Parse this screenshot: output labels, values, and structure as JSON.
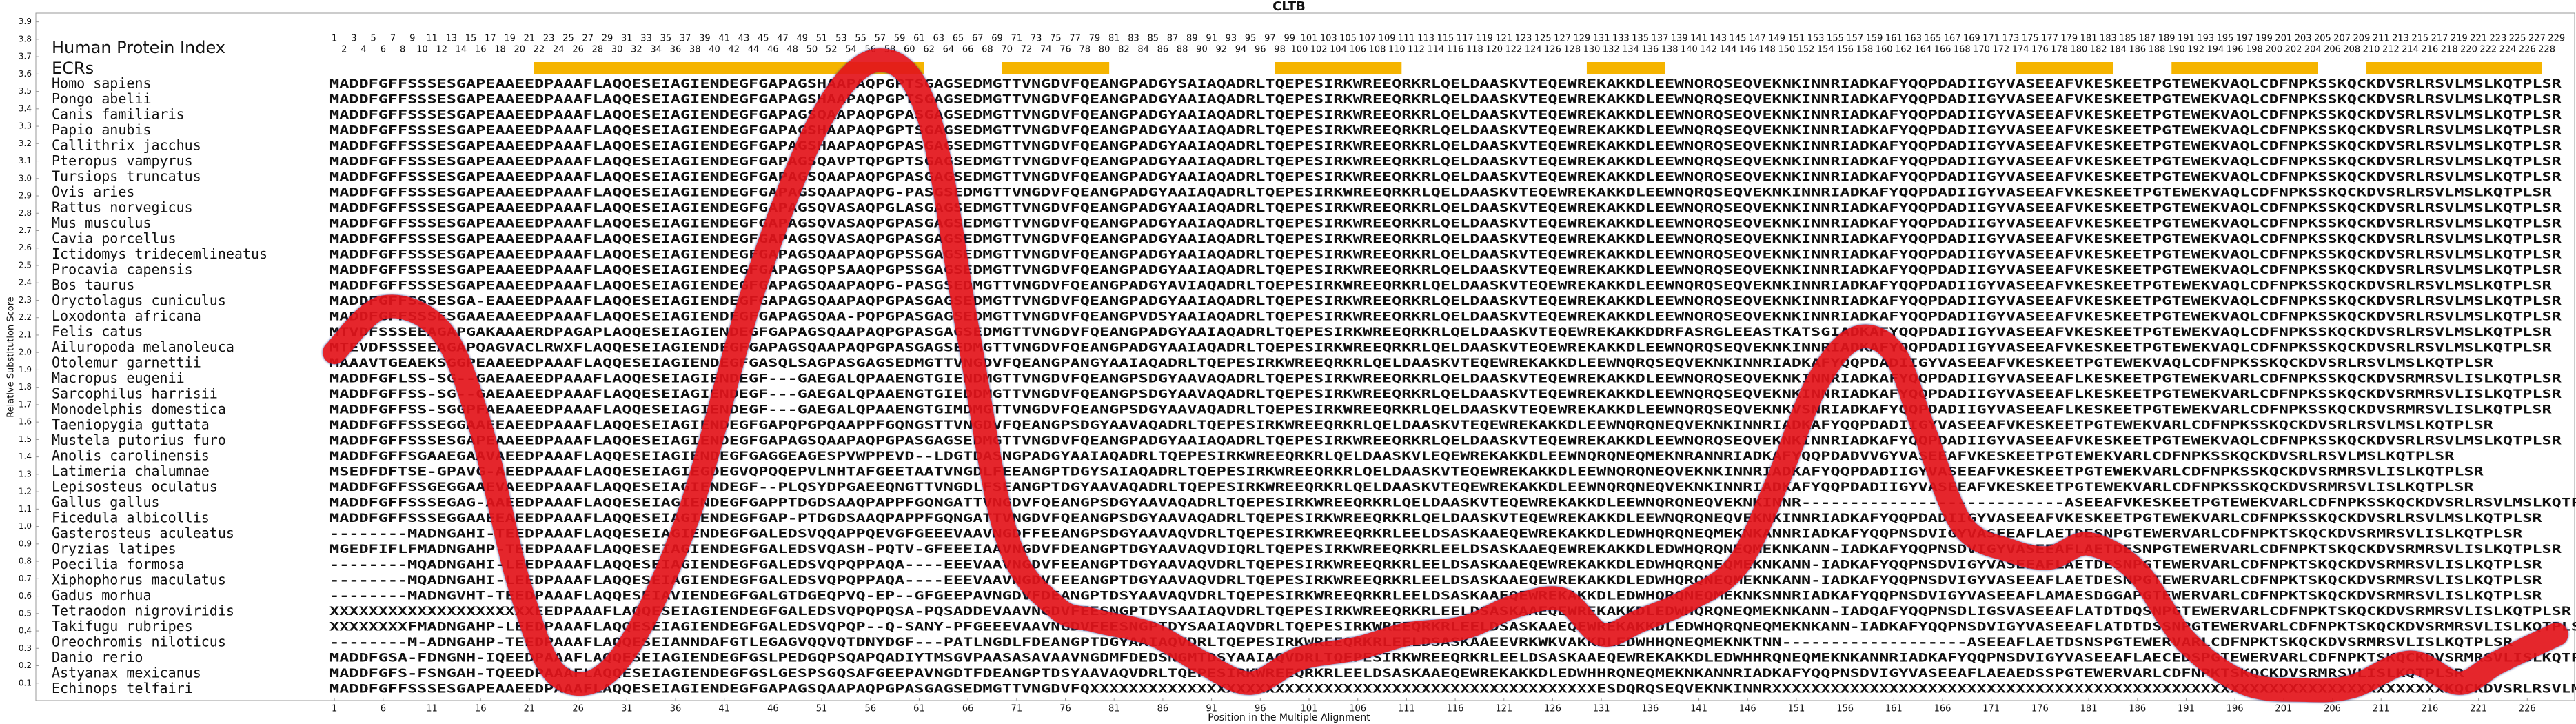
{
  "chart_data": {
    "type": "line",
    "title": "CLTB",
    "xlabel": "Position in the Multiple Alignment",
    "ylabel": "Relative Substitution Score",
    "xlim": [
      0,
      231
    ],
    "ylim": [
      0,
      3.95
    ],
    "xticks": [
      1,
      6,
      11,
      16,
      21,
      26,
      31,
      36,
      41,
      46,
      51,
      56,
      61,
      66,
      71,
      76,
      81,
      86,
      91,
      96,
      101,
      106,
      111,
      116,
      121,
      126,
      131,
      136,
      141,
      146,
      151,
      156,
      161,
      166,
      171,
      176,
      181,
      186,
      191,
      196,
      201,
      206,
      211,
      216,
      221,
      226
    ],
    "yticks": [
      0.1,
      0.2,
      0.3,
      0.4,
      0.5,
      0.6,
      0.7,
      0.8,
      0.9,
      {
        "value": 1,
        "label": "1.0"
      },
      1.1,
      1.2,
      1.3,
      1.4,
      1.5,
      1.6,
      1.7,
      1.8,
      1.9,
      {
        "value": 2,
        "label": "2.0"
      },
      2.1,
      2.2,
      2.3,
      2.4,
      2.5,
      2.6,
      2.7,
      2.8,
      2.9,
      {
        "value": 3,
        "label": "3.0"
      },
      3.1,
      3.2,
      3.3,
      3.4,
      3.5,
      3.6,
      3.7,
      3.8,
      3.9
    ],
    "x": [
      1,
      6,
      12,
      16,
      20,
      24,
      30,
      37,
      44,
      51,
      57,
      62,
      66,
      70,
      75,
      79,
      85,
      90,
      95,
      100,
      106,
      111,
      117,
      122,
      127,
      131,
      135,
      140,
      145,
      149,
      153,
      157,
      161,
      164,
      168,
      173,
      177,
      181,
      186,
      191,
      197,
      203,
      208,
      214,
      219,
      223,
      229
    ],
    "series": [
      {
        "color": "#e3141b",
        "values": [
          2.0,
          2.26,
          2.12,
          1.57,
          0.66,
          0.14,
          0.22,
          1.01,
          2.36,
          3.35,
          3.68,
          3.35,
          2.12,
          0.94,
          0.54,
          0.46,
          0.38,
          0.22,
          0.1,
          0.24,
          0.3,
          0.38,
          0.42,
          0.54,
          0.58,
          0.38,
          0.46,
          0.58,
          0.78,
          1.25,
          1.81,
          2.08,
          2.0,
          1.57,
          1.01,
          0.86,
          0.82,
          0.9,
          0.74,
          0.34,
          0.1,
          0.06,
          0.08,
          0.22,
          0.1,
          0.22,
          0.38
        ]
      }
    ]
  },
  "alignment": {
    "header_label": "Human Protein Index",
    "ecr_label": "ECRs",
    "ecr_color": "#f5b400",
    "sequence_color": "#1f4fa0",
    "positions": [
      1,
      2,
      3,
      4,
      5,
      6,
      7,
      8,
      9,
      10,
      11,
      12,
      13,
      14,
      15,
      16,
      17,
      18,
      19,
      20,
      21,
      22,
      23,
      24,
      25,
      26,
      27,
      28,
      29,
      30,
      31,
      32,
      33,
      34,
      35,
      36,
      37,
      38,
      39,
      40,
      41,
      42,
      43,
      44,
      45,
      46,
      47,
      48,
      49,
      50,
      51,
      52,
      53,
      54,
      55,
      56,
      57,
      58,
      59,
      60,
      61,
      62,
      63,
      64,
      65,
      66,
      67,
      68,
      69,
      70,
      71,
      72,
      73,
      74,
      75,
      76,
      77,
      78,
      79,
      80,
      81,
      82,
      83,
      84,
      85,
      86,
      87,
      88,
      89,
      90,
      91,
      92,
      93,
      94,
      95,
      96,
      97,
      98,
      99,
      100,
      101,
      102,
      103,
      104,
      105,
      106,
      107,
      108,
      109,
      110,
      111,
      112,
      113,
      114,
      115,
      116,
      117,
      118,
      119,
      120,
      121,
      122,
      123,
      124,
      125,
      126,
      127,
      128,
      129,
      130,
      131,
      132,
      133,
      134,
      135,
      136,
      137,
      138,
      139,
      140,
      141,
      142,
      143,
      144,
      145,
      146,
      147,
      148,
      149,
      150,
      151,
      152,
      153,
      154,
      155,
      156,
      157,
      158,
      159,
      160,
      161,
      162,
      163,
      164,
      165,
      166,
      167,
      168,
      169,
      170,
      171,
      172,
      173,
      174,
      175,
      176,
      177,
      178,
      179,
      180,
      181,
      182,
      183,
      184,
      185,
      186,
      187,
      188,
      189,
      190,
      191,
      192,
      193,
      194,
      195,
      196,
      197,
      198,
      199,
      200,
      201,
      202,
      203,
      204,
      205,
      206,
      207,
      208,
      209,
      210,
      211,
      212,
      213,
      214,
      215,
      216,
      217,
      218,
      219,
      220,
      221,
      222,
      223,
      224,
      225,
      226,
      227,
      228,
      229
    ],
    "ecrs": [
      {
        "start": 22,
        "end": 61
      },
      {
        "start": 70,
        "end": 80
      },
      {
        "start": 98,
        "end": 110
      },
      {
        "start": 130,
        "end": 137
      },
      {
        "start": 174,
        "end": 183
      },
      {
        "start": 190,
        "end": 204
      },
      {
        "start": 210,
        "end": 227
      }
    ],
    "rows": [
      {
        "species": "Homo sapiens",
        "sequence": "MADDFGFFSSSESGAPEAAEEDPAAAFLAQQESEIAGIENDEGFGAPAGSHAAPAQPGPTSGAGSEDMGTTVNGDVFQEANGPADGYSAIAQADRLTQEPESIRKWREEQRKRLQELDAASKVTEQEWREKAKKDLEEWNQRQSEQVEKNKINNRIADKAFYQQPDADIIGYVASEEAFVKESKEETPGTEWEKVAQLCDFNPKSSKQCKDVSRLRSVLMSLKQTPLSR"
      },
      {
        "species": "Pongo abelii",
        "sequence": "MADDFGFFSSSESGAPEAAEEDPAAAFLAQQESEIAGIENDEGFGAPAGSHAAPAQPGPTSGAGSEDMGTTVNGDVFQEANGPADGYAAIAQADRLTQEPESIRKWREEQRKRLQELDAASKVTEQEWREKAKKDLEEWNQRQSEQVEKNKINNRIADKAFYQQPDADIIGYVASEEAFVKESKEETPGTEWEKVAQLCDFNPKSSKQCKDVSRLRSVLMSLKQTPLSR"
      },
      {
        "species": "Canis familiaris",
        "sequence": "MADDFGFFSSSESGAPEAAEEDPAAAFLAQQESEIAGIENDEGFGAPAGSQAAPAQPGPASGAGSEDMGTTVNGDVFQEANGPADGYAAIAQADRLTQEPESIRKWREEQRKRLQELDAASKVTEQEWREKAKKDLEEWNQRQSEQVEKNKINNRIADKAFYQQPDADIIGYVASEEAFVKESKEETPGTEWEKVAQLCDFNPKSSKQCKDVSRLRSVLMSLKQTPLSR"
      },
      {
        "species": "Papio anubis",
        "sequence": "MADDFGFFSSSESGAPEAAEEDPAAAFLAQQESEIAGIENDEGFGAPAGSHAAPAQPGPTSGAGSEDMGTTVNGDVFQEANGPADGYAAIAQADRLTQEPESIRKWREEQRKRLQELDAASKVTEQEWREKAKKDLEEWNQRQSEQVEKNKINNRIADKAFYQQPDADIIGYVASEEAFVKESKEETPGTEWEKVAQLCDFNPKSSKQCKDVSRLRSVLMSLKQTPLSR"
      },
      {
        "species": "Callithrix jacchus",
        "sequence": "MADDFGFFSSSESGAPEAAEEDPAAAFLAQQESEIAGIENDEGFGAPAGSHAAPAQPGPASGAGSEDMGTTVNGDVFQEANGPADGYAAIAQADRLTQEPESIRKWREEQRKRLQELDAASKVTEQEWREKAKKDLEEWNQRQSEQVEKNKINNRIADKAFYQQPDADIIGYVASEEAFVKESKEETPGTEWEKVAQLCDFNPKSSKQCKDVSRLRSVLMSLKQTPLSR"
      },
      {
        "species": "Pteropus vampyrus",
        "sequence": "MADDFGFFSSSESGAPEAAEEDPAAAFLAQQESEIAGIENDEGFGAPAGSQAVPTQPGPTSGAGSEDMGTTVNGDVFQEANGPADGYAAIAQADRLTQEPESIRKWREEQRKRLQELDAASKVTEQEWREKAKKDLEEWNQRQSEQVEKNKINNRIADKAFYQQPDADIIGYVASEEAFVKESKEETPGTEWEKVAQLCDFNPKSSKQCKDVSRLRSVLMSLKQTPLSR"
      },
      {
        "species": "Tursiops truncatus",
        "sequence": "MADDFGFFSSSESGAPEAAEEDPAAAFLAQQESEIAGIENDEGFGAPAGSQAAPAQPGPASGAGSEDMGTTVNGDVFQEANGPADGYAAIAQADRLTQEPESIRKWREEQRKRLQELDAASKVTEQEWREKAKKDLEEWNQRQSEQVEKNKINNRIADKAFYQQPDADIIGYVASEEAFVKESKEETPGTEWEKVAQLCDFNPKSSKQCKDVSRLRSVLMSLKQTPLSR"
      },
      {
        "species": "Ovis aries",
        "sequence": "MADDFGFFSSSESGAPEAAEEDPAAAFLAQQESEIAGIENDEGFGAPAGSQAAPAQPG-PASGSEDMGTTVNGDVFQEANGPADGYAAIAQADRLTQEPESIRKWREEQRKRLQELDAASKVTEQEWREKAKKDLEEWNQRQSEQVEKNKINNRIADKAFYQQPDADIIGYVASEEAFVKESKEETPGTEWEKVAQLCDFNPKSSKQCKDVSRLRSVLMSLKQTPLSR"
      },
      {
        "species": "Rattus norvegicus",
        "sequence": "MADDFGFFSSSESGAPEAAEEDPAAAFLAQQESEIAGIENDEGFGAPAGSQVASAQPGLASGAGSEDMGTTVNGDVFQEANGPADGYAAIAQADRLTQEPESIRKWREEQRKRLQELDAASKVTEQEWREKAKKDLEEWNQRQSEQVEKNKINNRIADKAFYQQPDADIIGYVASEEAFVKESKEETPGTEWEKVAQLCDFNPKSSKQCKDVSRLRSVLMSLKQTPLSR"
      },
      {
        "species": "Mus musculus",
        "sequence": "MADDFGFFSSSESGAPEAAEEDPAAAFLAQQESEIAGIENDEGFGAPAGSQVASAQPGPASGAGSEDMGTTVNGDVFQEANGPADGYAAIAQADRLTQEPESIRKWREEQRKRLQELDAASKVTEQEWREKAKKDLEEWNQRQSEQVEKNKINNRIADKAFYQQPDADIIGYVASEEAFVKESKEETPGTEWEKVAQLCDFNPKSSKQCKDVSRLRSVLMSLKQTPLSR"
      },
      {
        "species": "Cavia porcellus",
        "sequence": "MADDFGFFSSSESGAPEAAEEDPAAAFLAQQESEIAGIENDEGFGAPAGSQVASAQPGPASGAGSEDMGTTVNGDVFQEANGPADGYAAIAQADRLTQEPESIRKWREEQRKRLQELDAASKVTEQEWREKAKKDLEEWNQRQSEQVEKNKINNRIADKAFYQQPDADIIGYVASEEAFVKESKEETPGTEWEKVAQLCDFNPKSSKQCKDVSRLRSVLMSLKQTPLSR"
      },
      {
        "species": "Ictidomys tridecemlineatus",
        "sequence": "MADDFGFFSSSESGAPEAAEEDPAAAFLAQQESEIAGIENDEGFGAPAGSQAAPAQPGPSSGAGSEDMGTTVNGDVFQEANGPADGYAAIAQADRLTQEPESIRKWREEQRKRLQELDAASKVTEQEWREKAKKDLEEWNQRQSEQVEKNKINNRIADKAFYQQPDADIIGYVASEEAFVKESKEETPGTEWEKVAQLCDFNPKSSKQCKDVSRLRSVLMSLKQTPLSR"
      },
      {
        "species": "Procavia capensis",
        "sequence": "MADDFGFFSSSESGAPEAAEEDPAAAFLAQQESEIAGIENDEGFGAPAGSQPSAAQPGPSSGAGSEDMGTTVNGDVFQEANGPADGYAAIAQADRLTQEPESIRKWREEQRKRLQELDAASKVTEQEWREKAKKDLEEWNQRQSEQVEKNKINNRIADKAFYQQPDADIIGYVASEEAFVKESKEETPGTEWEKVAQLCDFNPKSSKQCKDVSRLRSVLMSLKQTPLSR"
      },
      {
        "species": "Bos taurus",
        "sequence": "MADDFGFFSSSESGAPEAAEEDPAAAFLAQQESEIAGIENDEGFGAPAGSQAAPAQPG-PASGSEDMGTTVNGDVFQEANGPADGYAVIAQADRLTQEPESIRKWREEQRKRLQELDAASKVTEQEWREKAKKDLEEWNQRQSEQVEKNKINNRIADKAFYQQPDADIIGYVASEEAFVKESKEETPGTEWEKVAQLCDFNPKSSKQCKDVSRLRSVLMSLKQTPLSR"
      },
      {
        "species": "Oryctolagus cuniculus",
        "sequence": "MADDFGFFSSSESGA-EAAEEDPAAAFLAQQESEIAGIENDEGFGAPAGSQAAPAQPGPASGAGSEDMGTTVNGDVFQEANGPADGYAAIAQADRLTQEPESIRKWREEQRKRLQELDAASKVTEQEWREKAKKDLEEWNQRQSEQVEKNKINNRIADKAFYQQPDADIIGYVASEEAFVKESKEETPGTEWEKVAQLCDFNPKSSKQCKDVSRLRSVLMSLKQTPLSR"
      },
      {
        "species": "Loxodonta africana",
        "sequence": "MADDFGFFSSSESGAAEAAEEDPAAAFLAQQESEIAGIENDEGFGAPAGSQAA-PQPGPASGAGSEDMGTTVNGDVFQEANGPVDSYAAIAQADRLTQEPESIRKWREEQRKRLQELDAASKVTEQEWREKAKKDLEEWNQRQSEQVEKNKINNRIADKAFYQQPDADIIGYVASEEAFVKESKEETPGTEWEKVAQLCDFNPKSSKQCKDVSRLRSVLMSLKQTPLSR"
      },
      {
        "species": "Felis catus",
        "sequence": "MTVDFSSSEEAGAPGAKAAAERDPAGAPLAQQESEIAGIENDEGFGAPAGSQAAPAQPGPASGAGSEDMGTTVNGDVFQEANGPADGYAAIAQADRLTQEPESIRKWREEQRKRLQELDAASKVTEQEWREKAKKDDRFASRGLEEASTKATSGIADKAFYQQPDADIIGYVASEEAFVKESKEETPGTEWEKVAQLCDFNPKSSKQCKDVSRLRSVLMSLKQTPLSR"
      },
      {
        "species": "Ailuropoda melanoleuca",
        "sequence": "MTEVDFSSSEEAGAPQAGVACLRWXFLAQQESEIAGIENDEGFGAPAGSQAAPAQPGPASGAGSEDMGTTVNGDVFQEANGPADGYAAIAQADRLTQEPESIRKWREEQRKRLQELDAASKVTEQEWREKAKKDLEEWNQRQSEQVEKNKINNRIADKAFYQQPDADIIGYVASEEAFVKESKEETPGTEWEKVAQLCDFNPKSSKQCKDVSRLRSVLMSLKQTPLSR"
      },
      {
        "species": "Otolemur garnettii",
        "sequence": "MAAAVTGEAEKSGGPEAAEEDPAAAFLAQQESEIAGIENDEGFGASQLSAGPASGAGSEDMGTTVNGDVFQEANGPANGYAAIAQADRLTQEPESIRKWREEQRKRLQELDAASKVTEQEWREKAKKDLEEWNQRQSEQVEKNKINNRIADKAFYQQPDADIIGYVASEEAFVKESKEETPGTEWEKVAQLCDFNPKSSKQCKDVSRLRSVLMSLKQTPLSR"
      },
      {
        "species": "Macropus eugenii",
        "sequence": "MADDFGFLSS-SG--GAEAAEEDPAAAFLAQQESEIAGIENDEGF---GAEGALQPAAENGTGIENDMGTTVNGDVFQEANGPSDGYAAVAQADRLTQEPESIRKWREEQRKRLQELDAASKVTEQEWREKAKKDLEEWNQRQSEQVEKNKINNRIADKAFYQQPDADIIGYVASEEAFLKESKEETPGTEWEKVARLCDFNPKSSKQCKDVSRMRSVLISLKQTPLSR"
      },
      {
        "species": "Sarcophilus harrisii",
        "sequence": "MADDFGFFSS-SG--GAEAAEEDPAAAFLAQQESEIAGIENDEGF---GAEGALQPAAENGTGIEDDMGTTVNGDVFQEANGPSDGYAAVAQADRLTQEPESIRKWREEQRKRLQELDAASKVTEQEWREKAKKDLEEWNQRQSEQVEKNKINNRIADKAFYQQPDADIIGYVASEEAFLKESKEETPGTEWEKVARLCDFNPKSSKQCKDVSRMRSVLISLKQTPLSR"
      },
      {
        "species": "Monodelphis domestica",
        "sequence": "MADDFGFFSS-SGGPFAEAAEEDPAAAFLAQQESEIAGIENDEGF---GAEGALQPAAENGTGIMDMGTTVNGDVFQEANGPSDGYAAVAQADRLTQEPESIRKWREEQRKRLQELDAASKVTEQEWREKAKKDLEEWNQRQSEQVEKNKVSNRIADKAFYQQPDADIIGYVASEEAFLKESKEETPGTEWEKVARLCDFNPKSSKQCKDVSRMRSVLISLKQTPLSR"
      },
      {
        "species": "Taeniopygia guttata",
        "sequence": "MADDFGFFSSSEGGAAEEAEEDPAAAFLAQQESEIAGIENDEGFGAPQPGPQAAPPFGQNGSTTVNGDVFQEANGPSDGYAAVAQADRLTQEPESIRKWREEQRKRLQELDAASKVTEQEWREKAKKDLEEWNQRQNEQVEKNKINNRIADKAFYQQPDADIIGYVASEEAFVKESKEETPGTEWEKVARLCDFNPKSSKQCKDVSRLRSVLMSLKQTPLSR"
      },
      {
        "species": "Mustela putorius furo",
        "sequence": "MADDFGFFSSSESGAPEAAEEDPAAAFLAQQESEIAGIENDEGFGAPAGSQAAPAQPGPASGAGSEDMGTTVNGDVFQEANGPADGYAAIAQADRLTQEPESIRKWREEQRKRLQELDAASKVTEQEWREKAKKDLEEWNQRQSEQVEKNKINNRIADKAFYQQPDADIIGYVASEEAFVKESKEETPGTEWEKVAQLCDFNPKSSKQCKDVSRLRSVLMSLKQTPLSR"
      },
      {
        "species": "Anolis carolinensis",
        "sequence": "MADDFGFFSGAAEGAAVAEEDPAAAFLAQQESEIAGIENDEGFGAGGEAGESPVWPPEVD--LDGTDASNGPADGYAAIAQADRLTQEPESIRKWREEQRKRLQELDAASKVLEQEWREKAKKDLEEWNQRQNEQMEKNRANNRIADKAFYQQPDADVVGYVASEEAFVKESKEETPGTEWEKVARLCDFNPKSSKQCKDVSRLRSVLMSLKQTPLSR"
      },
      {
        "species": "Latimeria chalumnae",
        "sequence": "MSEDFDFTSE-GPAVG-AEEDPAAAFLAQQESEIAGIEGDEGVQPQQEPVLNHTAFGEETAATVNGDLFEEANGPTDGYSAIAQADRLTQEPESIRKWREEQRKRLQELDAASKVTEQEWREKAKKDLEEWNQRQNEQVEKNKINNRIADKAFYQQPDADIIGYVASEEAFVKESKEETPGTEWEKVARLCDFNPKSSKQCKDVSRMRSVLISLKQTPLSR"
      },
      {
        "species": "Lepisosteus oculatus",
        "sequence": "MADDFGFFSSGEGGAAEVAEEDPAAAFLAQQESEIAGIENDEGF--PLQSYDPGAEEQNGTTVNGDLFSEANGPTDGYAAVAQADRLTQEPESIRKWREEQRKRLQELDAASKVTEQEWREKAKKDLEEWNQRQNEQVEKNKINNRIADKAFYQQPDADIIGYVASEEAFVKESKEETPGTEWEKVARLCDFNPKSSKQCKDVSRMRSVLISLKQTPLSR"
      },
      {
        "species": "Gallus gallus",
        "sequence": "MADDFGFFSSSEGAG-AAEEDPAAAFLAQQESEIAGIENDEGFGAPPTDGDSAAQPAPPFGQNGATTVNGDVFQEANGPSDGYAAVAQADRLTQEPESIRKWREEQRKRLQELDAASKVTEQEWREKAKKDLEEWNQRQNEQVEKNKINNR---------------------------ASEEAFVKESKEETPGTEWEKVARLCDFNPKSSKQCKDVSRLRSVLMSLKQTPLSR"
      },
      {
        "species": "Ficedula albicollis",
        "sequence": "MADDFGFFSSSEGGAAEEAEEDPAAAFLAQQESEIAGIENDEGFGAP-PTDGDSAAQPAPPFGQNGATTVNGDVFQEANGPSDGYAAVAQADRLTQEPESIRKWREEQRKRLQELDAASKVTEQEWREKAKKDLEEWNQRQNEQVEKNKINNRIADKAFYQQPDADIIGYVASEEAFVKESKEETPGTEWEKVARLCDFNPKSSKQCKDVSRLRSVLMSLKQTPLSR"
      },
      {
        "species": "Gasterosteus aculeatus",
        "sequence": "--------MADNGAHI-TEEDPAAAFLAQQESEIAGIENDEGFGALEDSVQQAPPQEVGFGEEEVAAVNGDFFEEANGPSDGYAAVAQVDRLTQEPESIRKWREEQRKRLEELDSASKAAEQEWREKAKKDLEDWHQRQNEQMEKNKANNRIADKAFYQQPNSDVIGYVASEEAFLAETDESNPGTEWERVARLCDFNPKTSKQCKDVSRMRSVLISLKQTPLSR"
      },
      {
        "species": "Oryzias latipes",
        "sequence": "MGEDFIFLFMADNGAHP-TEEDPAAAFLAQQESEIAGIENDEGFGALEDSVQASH-PQTV-GFEEEIAAVNGDVFDEANGPTDGYAAVAQVDIQRLTQEPESIRKWREEQRKRLEELDSASKAAEQEWREKAKKDLEDWHQRQNEQMEKNKANN-IADKAFYQQPNSDVIGYVASEEAFLAETDESNPGTEWERVARLCDFNPKTSKQCKDVSRMRSVLISLKQTPLSR"
      },
      {
        "species": "Poecilia formosa",
        "sequence": "--------MQADNGAHI-LEEDPAAAFLAQQESEIAGIENDEGFGALEDSVQPQPPAQA----EEEVAAVNGDVFEEANGPTDGYAAVAQVDRLTQEPESIRKWREEQRKRLEELDSASKAAEQEWREKAKKDLEDWHQRQNEQMEKNKANN-IADKAFYQQPNSDVIGYVASEEAFLAETDESNPGTEWERVARLCDFNPKTSKQCKDVSRMRSVLISLKQTPLSR"
      },
      {
        "species": "Xiphophorus maculatus",
        "sequence": "--------MQADNGAHI-LEEDPAAAFLAQQESEIAGIENDEGFGALEDSVQPQPPAQA----EEEVAAVNGDVFEEANGPTDGYAAVAQVDRLTQEPESIRKWREEQRKRLEELDSASKAAEQEWREKAKKDLEDWHQRQNEQMEKNKANN-IADKAFYQQPNSDVIGYVASEEAFLAETDESNPGTEWERVARLCDFNPKTSKQCKDVSRMRSVLISLKQTPLSR"
      },
      {
        "species": "Gadus morhua",
        "sequence": "--------MADNGVHT-TEEDPAAAFLAQQESEIAVIENDEGFGALGTDGEQPVQ-EP--GFGEEPAVNGDVFDEANGPTDSYAAVAQVDRLTQEPESIRKWREEQRKRLEELDSASKAAEQEWREKAKKDLEDWHQRQNEQMEKNKSNNRIADKAFYQQPNSDVIGYVASEEAFLAMAESDGGAPGTEWERVARLCDFNPKTSKQCKDVSRMRSVLISLKQTPLSR"
      },
      {
        "species": "Tetraodon nigroviridis",
        "sequence": "XXXXXXXXXXXXXXXXXXXXXEEDPAAAFLAQQESEIAGIENDEGFGALEDSVQPQPQSA-PQSADDEVAAVNGDVFEESNGPTDYSAAIAQVDRLTQEPESIRKWREEQRKRLEELDSASKAAEQEWREKAKKDLEDWHQRQNEQMEKNKANN-IADQAFYQQPNSDLIGSVASEEAFLATDTDQSNPGTEWERVARLCDFNPKTSKQCKDVSRMRSVLISLKQTPLSR"
      },
      {
        "species": "Takifugu rubripes",
        "sequence": "XXXXXXXXFMADNGAHP-LEEDPAAAFLAQQESEIAGIENDEGFGALEDSVQPQP--Q-SANY-PFGEEEVAAVNGDVFEESNGPTDYSAAIAQVDRLTQEPESIRKWREEQRKRLEELDSASKAAEQEWREKAKKDLEDWHQRQNEQMEKNKANN-IADKAFYQQPNSDVIGYVASEEAFLATDTDSSNPGTEWERVARLCDFNPKTSKQCKDVSRMRSVLISLKQTPLSR"
      },
      {
        "species": "Oreochromis niloticus",
        "sequence": "--------M-ADNGAHP-TEEDPAAAFLAQQESEIANNDAFGTLEGAGVQQVQTDNYDGF---PATLNGDLFDEANGPTDGYAAIAQVDRLTQEPESIRKWREEQRKRLEELDSASKAAEEVRKWKVAKKDLEDWHHQNEQMEKNKTNN-------------------ASEEAFLAETDSNSPGTEWERVARLCDFNPKTSKQCKDVSRMRSVLISLKQTPLSR"
      },
      {
        "species": "Danio rerio",
        "sequence": "MADDFGSA-FDNGNH-IQEEDPAAAFLAQQESEIAGIENDEGFGSLPEDGQPSQAPQADIYTMSGVPAASASAVAAVNGDMFDEDSNGMTDSYAAIAQVDRLTQEPESIRKWREEQRKRLEELDSASKAAEQEWREKAKKDLEDWHHRQNEQMEKNKANNRIADKAFYQQPNSDVIGYVASEEAFLAECEDSPGTEWERVARLCDFNPKTSKQCKDVSRMRSVLISLKQTPLSR"
      },
      {
        "species": "Astyanax mexicanus",
        "sequence": "MADDFGFS-FSNGAH-TQEEDPAAAFLAQQESEIAGIENDEGFGSLGESPSGQSAFGEEPAVNGDTFDEANGPTDSYAAVAQVDRLTQEPESIRKWREEQRKRLEELDSASKAAEQEWREKAKKDLEDWHHRQNEQMEKNKANNRIADKAFYQQPNSDVIGYVASEEAFLAEAEDSSPGTEWERVARLCDFNPKTSKQCKDVSRMRSVLISLKQTPLSR"
      },
      {
        "species": "Echinops telfairi",
        "sequence": "MADDFGFFSSSESGAPEAAEEDPAAAFLAQQESEIAGIENDEGFGAPAGSQAAPAQPGPASGAGSEDMGTTVNGDVFQXXXXXXXXXXXXXXXXXXXXXXXXXXXXXXXXXXXXXXXXXXXXXXXXXXXXESDQRQSEQVEKNKINNRXXXXXXXXXXXXXXXXXXXXXXXXXXXXXXXXXXXXXXXXXXXXXXXXXXXXXXXXXXXXXXXXXXXXXKQCKDVSRLRSVLMSLKQTPLSR"
      }
    ]
  }
}
